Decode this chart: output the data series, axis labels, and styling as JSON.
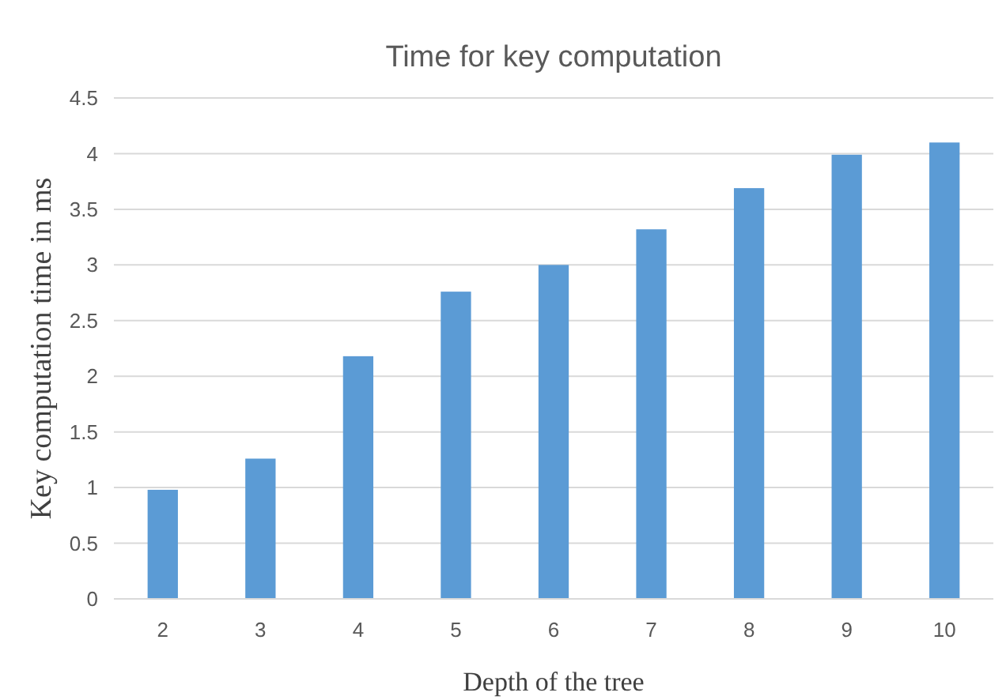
{
  "chart_data": {
    "type": "bar",
    "title": "Time for key computation",
    "xlabel": "Depth of the tree",
    "ylabel": "Key computation time in ms",
    "categories": [
      "2",
      "3",
      "4",
      "5",
      "6",
      "7",
      "8",
      "9",
      "10"
    ],
    "values": [
      0.98,
      1.26,
      2.18,
      2.76,
      3.0,
      3.32,
      3.69,
      3.99,
      4.1
    ],
    "color": "#5b9bd5",
    "ylim": [
      0,
      4.5
    ],
    "yticks": [
      0,
      0.5,
      1,
      1.5,
      2,
      2.5,
      3,
      3.5,
      4,
      4.5
    ],
    "grid": "y"
  }
}
